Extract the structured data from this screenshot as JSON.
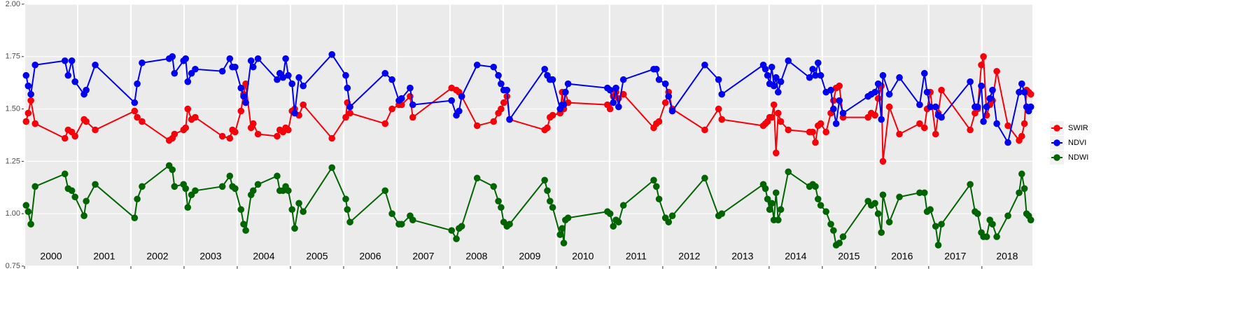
{
  "chart_data": {
    "type": "line",
    "x": [
      2000.03,
      2000.07,
      2000.12,
      2000.2,
      2000.76,
      2000.82,
      2000.89,
      2000.95,
      2001.12,
      2001.16,
      2001.33,
      2002.07,
      2002.12,
      2002.21,
      2002.72,
      2002.78,
      2002.82,
      2002.99,
      2003.03,
      2003.07,
      2003.14,
      2003.21,
      2003.72,
      2003.86,
      2003.91,
      2003.96,
      2004.07,
      2004.12,
      2004.16,
      2004.26,
      2004.3,
      2004.39,
      2004.75,
      2004.8,
      2004.86,
      2004.91,
      2004.96,
      2005.03,
      2005.08,
      2005.16,
      2005.24,
      2005.78,
      2006.04,
      2006.07,
      2006.12,
      2006.78,
      2006.91,
      2007.04,
      2007.09,
      2007.25,
      2007.3,
      2008.03,
      2008.12,
      2008.17,
      2008.22,
      2008.51,
      2008.82,
      2008.91,
      2008.96,
      2009.01,
      2009.07,
      2009.12,
      2009.78,
      2009.83,
      2009.88,
      2009.93,
      2010.07,
      2010.11,
      2010.14,
      2010.17,
      2010.22,
      2010.96,
      2011.01,
      2011.07,
      2011.12,
      2011.17,
      2011.26,
      2011.83,
      2011.88,
      2011.93,
      2012.05,
      2012.11,
      2012.18,
      2012.79,
      2013.05,
      2013.11,
      2013.89,
      2013.93,
      2013.97,
      2014.01,
      2014.05,
      2014.09,
      2014.13,
      2014.17,
      2014.22,
      2014.36,
      2014.76,
      2014.82,
      2014.87,
      2014.92,
      2014.97,
      2015.07,
      2015.16,
      2015.21,
      2015.26,
      2015.32,
      2015.39,
      2015.86,
      2015.92,
      2015.99,
      2016.05,
      2016.11,
      2016.14,
      2016.26,
      2016.45,
      2016.83,
      2016.92,
      2016.97,
      2017.03,
      2017.13,
      2017.18,
      2017.24,
      2017.78,
      2017.87,
      2017.92,
      2017.99,
      2018.03,
      2018.09,
      2018.15,
      2018.2,
      2018.28,
      2018.49,
      2018.7,
      2018.75,
      2018.8,
      2018.84,
      2018.88,
      2018.92
    ],
    "series": [
      {
        "name": "SWIR",
        "color": "#f8000a",
        "values": [
          1.44,
          1.48,
          1.54,
          1.43,
          1.36,
          1.4,
          1.39,
          1.37,
          1.45,
          1.44,
          1.4,
          1.49,
          1.46,
          1.44,
          1.35,
          1.36,
          1.38,
          1.4,
          1.41,
          1.5,
          1.45,
          1.46,
          1.37,
          1.36,
          1.4,
          1.39,
          1.49,
          1.57,
          1.62,
          1.41,
          1.43,
          1.38,
          1.37,
          1.4,
          1.39,
          1.41,
          1.4,
          1.49,
          1.5,
          1.47,
          1.52,
          1.36,
          1.46,
          1.53,
          1.48,
          1.43,
          1.5,
          1.52,
          1.52,
          1.56,
          1.46,
          1.6,
          1.59,
          1.58,
          1.56,
          1.42,
          1.44,
          1.48,
          1.5,
          1.53,
          1.56,
          1.45,
          1.4,
          1.41,
          1.46,
          1.47,
          1.48,
          1.58,
          1.5,
          1.58,
          1.53,
          1.52,
          1.5,
          1.56,
          1.58,
          1.55,
          1.57,
          1.41,
          1.43,
          1.44,
          1.53,
          1.58,
          1.5,
          1.4,
          1.5,
          1.45,
          1.42,
          1.43,
          1.44,
          1.46,
          1.46,
          1.52,
          1.29,
          1.48,
          1.44,
          1.4,
          1.39,
          1.39,
          1.34,
          1.42,
          1.43,
          1.39,
          1.48,
          1.54,
          1.6,
          1.61,
          1.46,
          1.46,
          1.48,
          1.47,
          1.55,
          1.61,
          1.25,
          1.51,
          1.38,
          1.43,
          1.41,
          1.5,
          1.58,
          1.38,
          1.48,
          1.59,
          1.4,
          1.48,
          1.5,
          1.71,
          1.75,
          1.47,
          1.52,
          1.54,
          1.68,
          1.42,
          1.35,
          1.37,
          1.43,
          1.59,
          1.58,
          1.57
        ]
      },
      {
        "name": "NDVI",
        "color": "#0000f0",
        "values": [
          1.66,
          1.61,
          1.57,
          1.71,
          1.73,
          1.66,
          1.73,
          1.63,
          1.57,
          1.59,
          1.71,
          1.53,
          1.62,
          1.72,
          1.74,
          1.75,
          1.67,
          1.73,
          1.74,
          1.63,
          1.67,
          1.69,
          1.68,
          1.74,
          1.7,
          1.7,
          1.6,
          1.56,
          1.53,
          1.73,
          1.7,
          1.74,
          1.64,
          1.67,
          1.65,
          1.74,
          1.66,
          1.62,
          1.48,
          1.65,
          1.61,
          1.76,
          1.66,
          1.6,
          1.51,
          1.67,
          1.64,
          1.54,
          1.55,
          1.6,
          1.52,
          1.54,
          1.47,
          1.49,
          1.56,
          1.71,
          1.7,
          1.66,
          1.62,
          1.59,
          1.59,
          1.45,
          1.69,
          1.66,
          1.64,
          1.64,
          1.5,
          1.52,
          1.52,
          1.58,
          1.62,
          1.6,
          1.59,
          1.53,
          1.6,
          1.51,
          1.64,
          1.69,
          1.69,
          1.64,
          1.62,
          1.56,
          1.49,
          1.71,
          1.64,
          1.57,
          1.71,
          1.69,
          1.66,
          1.62,
          1.7,
          1.61,
          1.65,
          1.58,
          1.63,
          1.73,
          1.65,
          1.69,
          1.66,
          1.72,
          1.66,
          1.58,
          1.59,
          1.5,
          1.43,
          1.54,
          1.48,
          1.56,
          1.57,
          1.58,
          1.62,
          1.45,
          1.66,
          1.57,
          1.65,
          1.52,
          1.67,
          1.58,
          1.51,
          1.51,
          1.47,
          1.46,
          1.63,
          1.51,
          1.51,
          1.61,
          1.44,
          1.51,
          1.55,
          1.59,
          1.43,
          1.34,
          1.58,
          1.62,
          1.58,
          1.51,
          1.49,
          1.51
        ]
      },
      {
        "name": "NDWI",
        "color": "#006400",
        "values": [
          1.04,
          1.01,
          0.95,
          1.13,
          1.19,
          1.12,
          1.11,
          1.08,
          0.99,
          1.06,
          1.14,
          0.98,
          1.07,
          1.13,
          1.23,
          1.21,
          1.13,
          1.14,
          1.12,
          1.03,
          1.09,
          1.11,
          1.13,
          1.18,
          1.13,
          1.12,
          1.02,
          0.95,
          0.92,
          1.09,
          1.11,
          1.14,
          1.18,
          1.11,
          1.11,
          1.13,
          1.11,
          1.02,
          0.93,
          1.05,
          1.01,
          1.22,
          1.07,
          1.02,
          0.96,
          1.11,
          1.0,
          0.95,
          0.95,
          0.99,
          0.97,
          0.92,
          0.88,
          0.93,
          0.94,
          1.17,
          1.13,
          1.06,
          1.03,
          0.96,
          0.94,
          0.95,
          1.16,
          1.11,
          1.06,
          1.03,
          0.9,
          0.93,
          0.86,
          0.97,
          0.98,
          1.01,
          1.0,
          0.94,
          0.97,
          0.96,
          1.04,
          1.16,
          1.13,
          1.07,
          0.98,
          0.96,
          0.99,
          1.17,
          0.99,
          1.0,
          1.14,
          1.12,
          1.07,
          1.02,
          1.05,
          0.97,
          1.1,
          0.97,
          1.02,
          1.2,
          1.13,
          1.14,
          1.13,
          1.07,
          1.04,
          1.01,
          0.95,
          0.92,
          0.85,
          0.86,
          0.89,
          1.06,
          1.04,
          1.05,
          1.0,
          0.91,
          1.09,
          0.96,
          1.08,
          1.1,
          1.1,
          1.01,
          1.02,
          0.94,
          0.85,
          0.95,
          1.14,
          1.01,
          1.0,
          0.91,
          0.89,
          0.89,
          0.97,
          0.95,
          0.89,
          0.99,
          1.1,
          1.19,
          1.12,
          1.0,
          0.99,
          0.97
        ]
      }
    ],
    "xlim": [
      2000,
      2018.95
    ],
    "xticks": [
      2000,
      2001,
      2002,
      2003,
      2004,
      2005,
      2006,
      2007,
      2008,
      2009,
      2010,
      2011,
      2012,
      2013,
      2014,
      2015,
      2016,
      2017,
      2018
    ],
    "ylim": [
      0.75,
      2.0
    ],
    "yticks": [
      {
        "value": 0.75,
        "label": "0.75"
      },
      {
        "value": 1.0,
        "label": "1.00"
      },
      {
        "value": 1.25,
        "label": "1.25"
      },
      {
        "value": 1.5,
        "label": "1.50"
      },
      {
        "value": 1.75,
        "label": "1.75"
      },
      {
        "value": 2.0,
        "label": "2.00"
      }
    ],
    "grid": true,
    "legend": "right"
  }
}
